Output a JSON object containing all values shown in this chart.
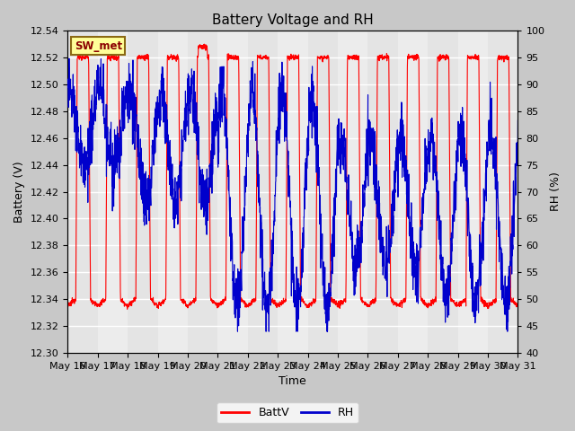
{
  "title": "Battery Voltage and RH",
  "xlabel": "Time",
  "ylabel_left": "Battery (V)",
  "ylabel_right": "RH (%)",
  "ylim_left": [
    12.3,
    12.54
  ],
  "ylim_right": [
    40,
    100
  ],
  "yticks_left": [
    12.3,
    12.32,
    12.34,
    12.36,
    12.38,
    12.4,
    12.42,
    12.44,
    12.46,
    12.48,
    12.5,
    12.52,
    12.54
  ],
  "yticks_right": [
    40,
    45,
    50,
    55,
    60,
    65,
    70,
    75,
    80,
    85,
    90,
    95,
    100
  ],
  "xtick_labels": [
    "May 16",
    "May 17",
    "May 18",
    "May 19",
    "May 20",
    "May 21",
    "May 22",
    "May 23",
    "May 24",
    "May 25",
    "May 26",
    "May 27",
    "May 28",
    "May 29",
    "May 30",
    "May 31"
  ],
  "box_label": "SW_met",
  "box_facecolor": "#FFFF99",
  "box_edgecolor": "#8B6914",
  "batt_color": "#FF0000",
  "rh_color": "#0000CC",
  "legend_batt": "BattV",
  "legend_rh": "RH",
  "fig_facecolor": "#C8C8C8",
  "plot_bg_color": "#F2F2F2",
  "grid_color": "#FFFFFF",
  "title_fontsize": 11,
  "label_fontsize": 9,
  "tick_fontsize": 8,
  "legend_fontsize": 9
}
